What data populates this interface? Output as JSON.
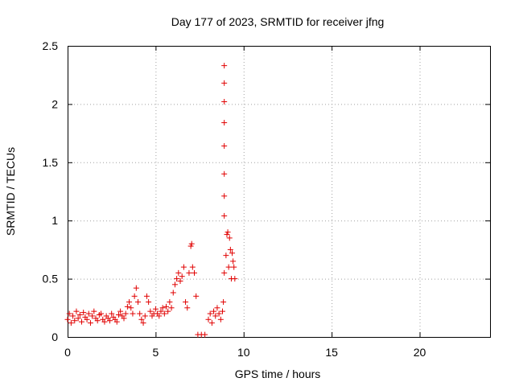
{
  "chart_data": {
    "type": "scatter",
    "title": "Day 177 of 2023, SRMTID for receiver jfng",
    "xlabel": "GPS time / hours",
    "ylabel": "SRMTID / TECUs",
    "xlim": [
      0,
      24
    ],
    "ylim": [
      0,
      2.5
    ],
    "xticks": [
      0,
      5,
      10,
      15,
      20
    ],
    "xtick_labels": [
      "0",
      "5",
      "10",
      "15",
      "20"
    ],
    "yticks": [
      0,
      0.5,
      1,
      1.5,
      2,
      2.5
    ],
    "ytick_labels": [
      "0",
      "0.5",
      "1",
      "1.5",
      "2",
      "2.5"
    ],
    "grid": true,
    "marker": "+",
    "color": "#e00000",
    "series": [
      {
        "name": "SRMTID",
        "x": [
          0.0,
          0.1,
          0.2,
          0.3,
          0.4,
          0.5,
          0.6,
          0.7,
          0.8,
          0.9,
          1.0,
          1.1,
          1.2,
          1.3,
          1.4,
          1.5,
          1.6,
          1.7,
          1.8,
          1.9,
          2.0,
          2.1,
          2.2,
          2.3,
          2.4,
          2.5,
          2.6,
          2.7,
          2.8,
          2.9,
          3.0,
          3.1,
          3.2,
          3.3,
          3.4,
          3.5,
          3.6,
          3.7,
          3.8,
          3.9,
          4.0,
          4.1,
          4.2,
          4.3,
          4.4,
          4.5,
          4.6,
          4.7,
          4.8,
          4.9,
          5.0,
          5.1,
          5.2,
          5.3,
          5.4,
          5.5,
          5.6,
          5.7,
          5.8,
          5.9,
          6.0,
          6.1,
          6.2,
          6.3,
          6.4,
          6.5,
          6.6,
          6.7,
          6.8,
          6.9,
          7.0,
          7.05,
          7.1,
          7.2,
          7.3,
          7.4,
          7.6,
          7.8,
          8.0,
          8.1,
          8.2,
          8.3,
          8.4,
          8.5,
          8.6,
          8.7,
          8.8,
          8.85,
          8.9,
          8.9,
          8.9,
          8.9,
          8.9,
          8.9,
          8.9,
          8.9,
          8.9,
          9.0,
          9.05,
          9.1,
          9.15,
          9.2,
          9.25,
          9.3,
          9.35,
          9.4,
          9.45,
          9.5
        ],
        "y": [
          0.15,
          0.2,
          0.12,
          0.18,
          0.14,
          0.22,
          0.16,
          0.19,
          0.13,
          0.21,
          0.17,
          0.15,
          0.2,
          0.12,
          0.18,
          0.22,
          0.16,
          0.14,
          0.19,
          0.2,
          0.15,
          0.13,
          0.18,
          0.16,
          0.14,
          0.2,
          0.17,
          0.15,
          0.13,
          0.19,
          0.22,
          0.18,
          0.16,
          0.2,
          0.26,
          0.3,
          0.25,
          0.2,
          0.35,
          0.42,
          0.3,
          0.2,
          0.15,
          0.12,
          0.18,
          0.35,
          0.3,
          0.22,
          0.18,
          0.2,
          0.24,
          0.2,
          0.18,
          0.22,
          0.25,
          0.2,
          0.26,
          0.22,
          0.3,
          0.25,
          0.38,
          0.45,
          0.5,
          0.55,
          0.48,
          0.52,
          0.6,
          0.3,
          0.25,
          0.55,
          0.78,
          0.8,
          0.6,
          0.55,
          0.35,
          0.02,
          0.02,
          0.02,
          0.15,
          0.2,
          0.12,
          0.22,
          0.18,
          0.25,
          0.2,
          0.15,
          0.22,
          0.3,
          0.55,
          1.04,
          1.21,
          1.4,
          1.64,
          1.84,
          2.02,
          2.18,
          2.33,
          0.7,
          0.88,
          0.9,
          0.6,
          0.85,
          0.75,
          0.5,
          0.72,
          0.65,
          0.6,
          0.5
        ]
      }
    ]
  }
}
